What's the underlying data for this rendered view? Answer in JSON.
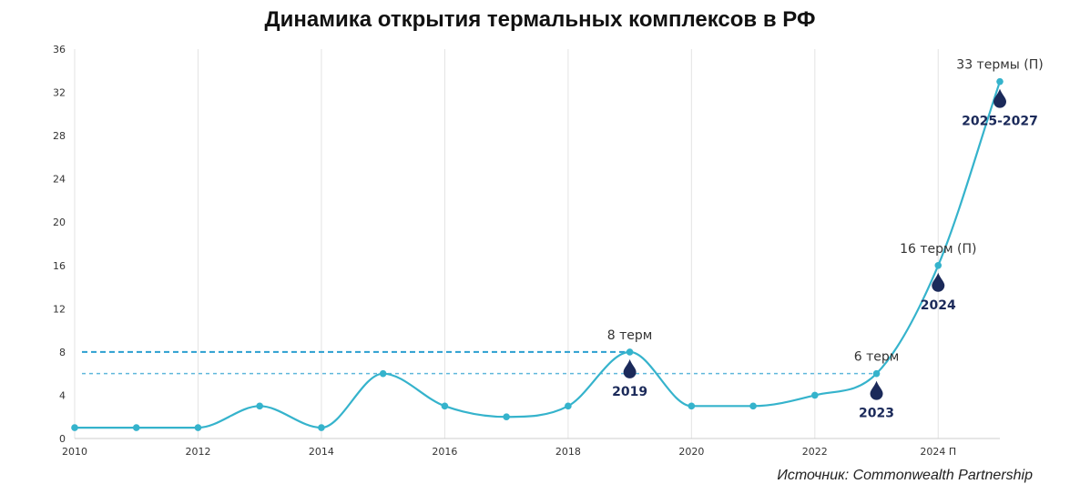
{
  "chart_data": {
    "type": "line",
    "title": "Динамика открытия термальных комплексов в РФ",
    "source": "Источник: Commonwealth Partnership",
    "x": [
      "2010",
      "2011",
      "2012",
      "2013",
      "2014",
      "2015",
      "2016",
      "2017",
      "2018",
      "2019",
      "2020",
      "2021",
      "2022",
      "2023",
      "2024 П",
      "2025-2027"
    ],
    "x_tick_labels": [
      "2010",
      "2012",
      "2014",
      "2016",
      "2018",
      "2020",
      "2022",
      "2024 П"
    ],
    "series": [
      {
        "values": [
          1,
          1,
          1,
          3,
          1,
          6,
          3,
          2,
          3,
          8,
          3,
          3,
          4,
          6,
          16,
          33
        ]
      }
    ],
    "ylim": [
      0,
      36
    ],
    "y_ticks": [
      0,
      4,
      8,
      12,
      16,
      20,
      24,
      28,
      32,
      36
    ],
    "grid": "vertical",
    "reference_lines": [
      8,
      6
    ],
    "annotations": [
      {
        "x_index": 9,
        "label": "8 терм",
        "marker_label": "2019"
      },
      {
        "x_index": 13,
        "label": "6 терм",
        "marker_label": "2023"
      },
      {
        "x_index": 14,
        "label": "16 терм (П)",
        "marker_label": "2024"
      },
      {
        "x_index": 15,
        "label": "33 термы (П)",
        "marker_label": "2025-2027"
      }
    ],
    "colors": {
      "line": "#35b3cc",
      "reference": "#2a9fd0",
      "marker": "#1b2a5a",
      "grid": "#e3e3e3"
    }
  }
}
